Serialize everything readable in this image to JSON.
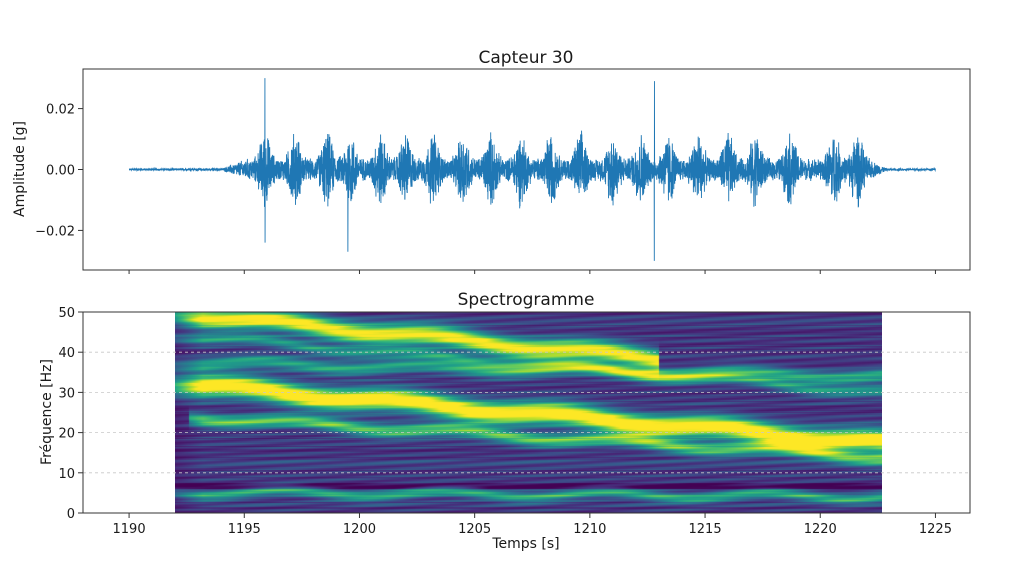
{
  "chart_data": [
    {
      "type": "line",
      "title": "Capteur 30",
      "xlabel": "",
      "ylabel": "Amplitude [g]",
      "xlim": [
        1188,
        1226.5
      ],
      "ylim": [
        -0.033,
        0.033
      ],
      "yticks": [
        0.02,
        0.0,
        -0.02
      ],
      "ytick_labels": [
        "0.02",
        "0.00",
        "−0.02"
      ],
      "grid": false,
      "color": "#1f77b4",
      "signal": {
        "t_start": 1190,
        "t_end": 1225,
        "onset": 1194.5,
        "decay_end": 1222.6,
        "background_amplitude": 0.0004,
        "typical_amplitude": 0.011,
        "peaks": [
          {
            "t": 1195.9,
            "value": 0.03
          },
          {
            "t": 1195.9,
            "value": -0.024
          },
          {
            "t": 1199.5,
            "value": -0.027
          },
          {
            "t": 1212.8,
            "value": 0.029
          },
          {
            "t": 1212.8,
            "value": -0.03
          }
        ],
        "burst_times": [
          1195.9,
          1197.2,
          1198.6,
          1199.6,
          1200.9,
          1202.0,
          1203.2,
          1204.5,
          1205.7,
          1207.0,
          1208.3,
          1209.6,
          1211.0,
          1212.2,
          1213.4,
          1214.7,
          1216.0,
          1217.2,
          1218.7,
          1220.6,
          1221.6
        ]
      }
    },
    {
      "type": "heatmap",
      "title": "Spectrogramme",
      "xlabel": "Temps [s]",
      "ylabel": "Fréquence [Hz]",
      "xlim": [
        1188,
        1226.5
      ],
      "ylim": [
        0,
        50
      ],
      "xticks": [
        1190,
        1195,
        1200,
        1205,
        1210,
        1215,
        1220,
        1225
      ],
      "xtick_labels": [
        "1190",
        "1195",
        "1200",
        "1205",
        "1210",
        "1215",
        "1220",
        "1225"
      ],
      "yticks": [
        0,
        10,
        20,
        30,
        40,
        50
      ],
      "ytick_labels": [
        "0",
        "10",
        "20",
        "30",
        "40",
        "50"
      ],
      "grid": "horizontal dashed",
      "colormap": "viridis",
      "time_range": [
        1192,
        1222.7
      ],
      "bands": [
        {
          "t0": 1192.5,
          "f0": 32.0,
          "t1": 1222.7,
          "f1": 17.5,
          "width": 2.6,
          "strength": 1.0
        },
        {
          "t0": 1192.5,
          "f0": 49.5,
          "t1": 1212.0,
          "f1": 39.0,
          "width": 2.4,
          "strength": 0.9
        },
        {
          "t0": 1194.0,
          "f0": 23.5,
          "t1": 1222.7,
          "f1": 14.0,
          "width": 1.6,
          "strength": 0.6
        },
        {
          "t0": 1192.5,
          "f0": 37.5,
          "t1": 1222.7,
          "f1": 34.0,
          "width": 1.6,
          "strength": 0.45
        },
        {
          "t0": 1192.5,
          "f0": 5.2,
          "t1": 1222.7,
          "f1": 4.2,
          "width": 1.2,
          "strength": 0.5
        },
        {
          "t0": 1192.5,
          "f0": 44.0,
          "t1": 1222.7,
          "f1": 30.0,
          "width": 1.4,
          "strength": 0.4
        }
      ]
    }
  ]
}
